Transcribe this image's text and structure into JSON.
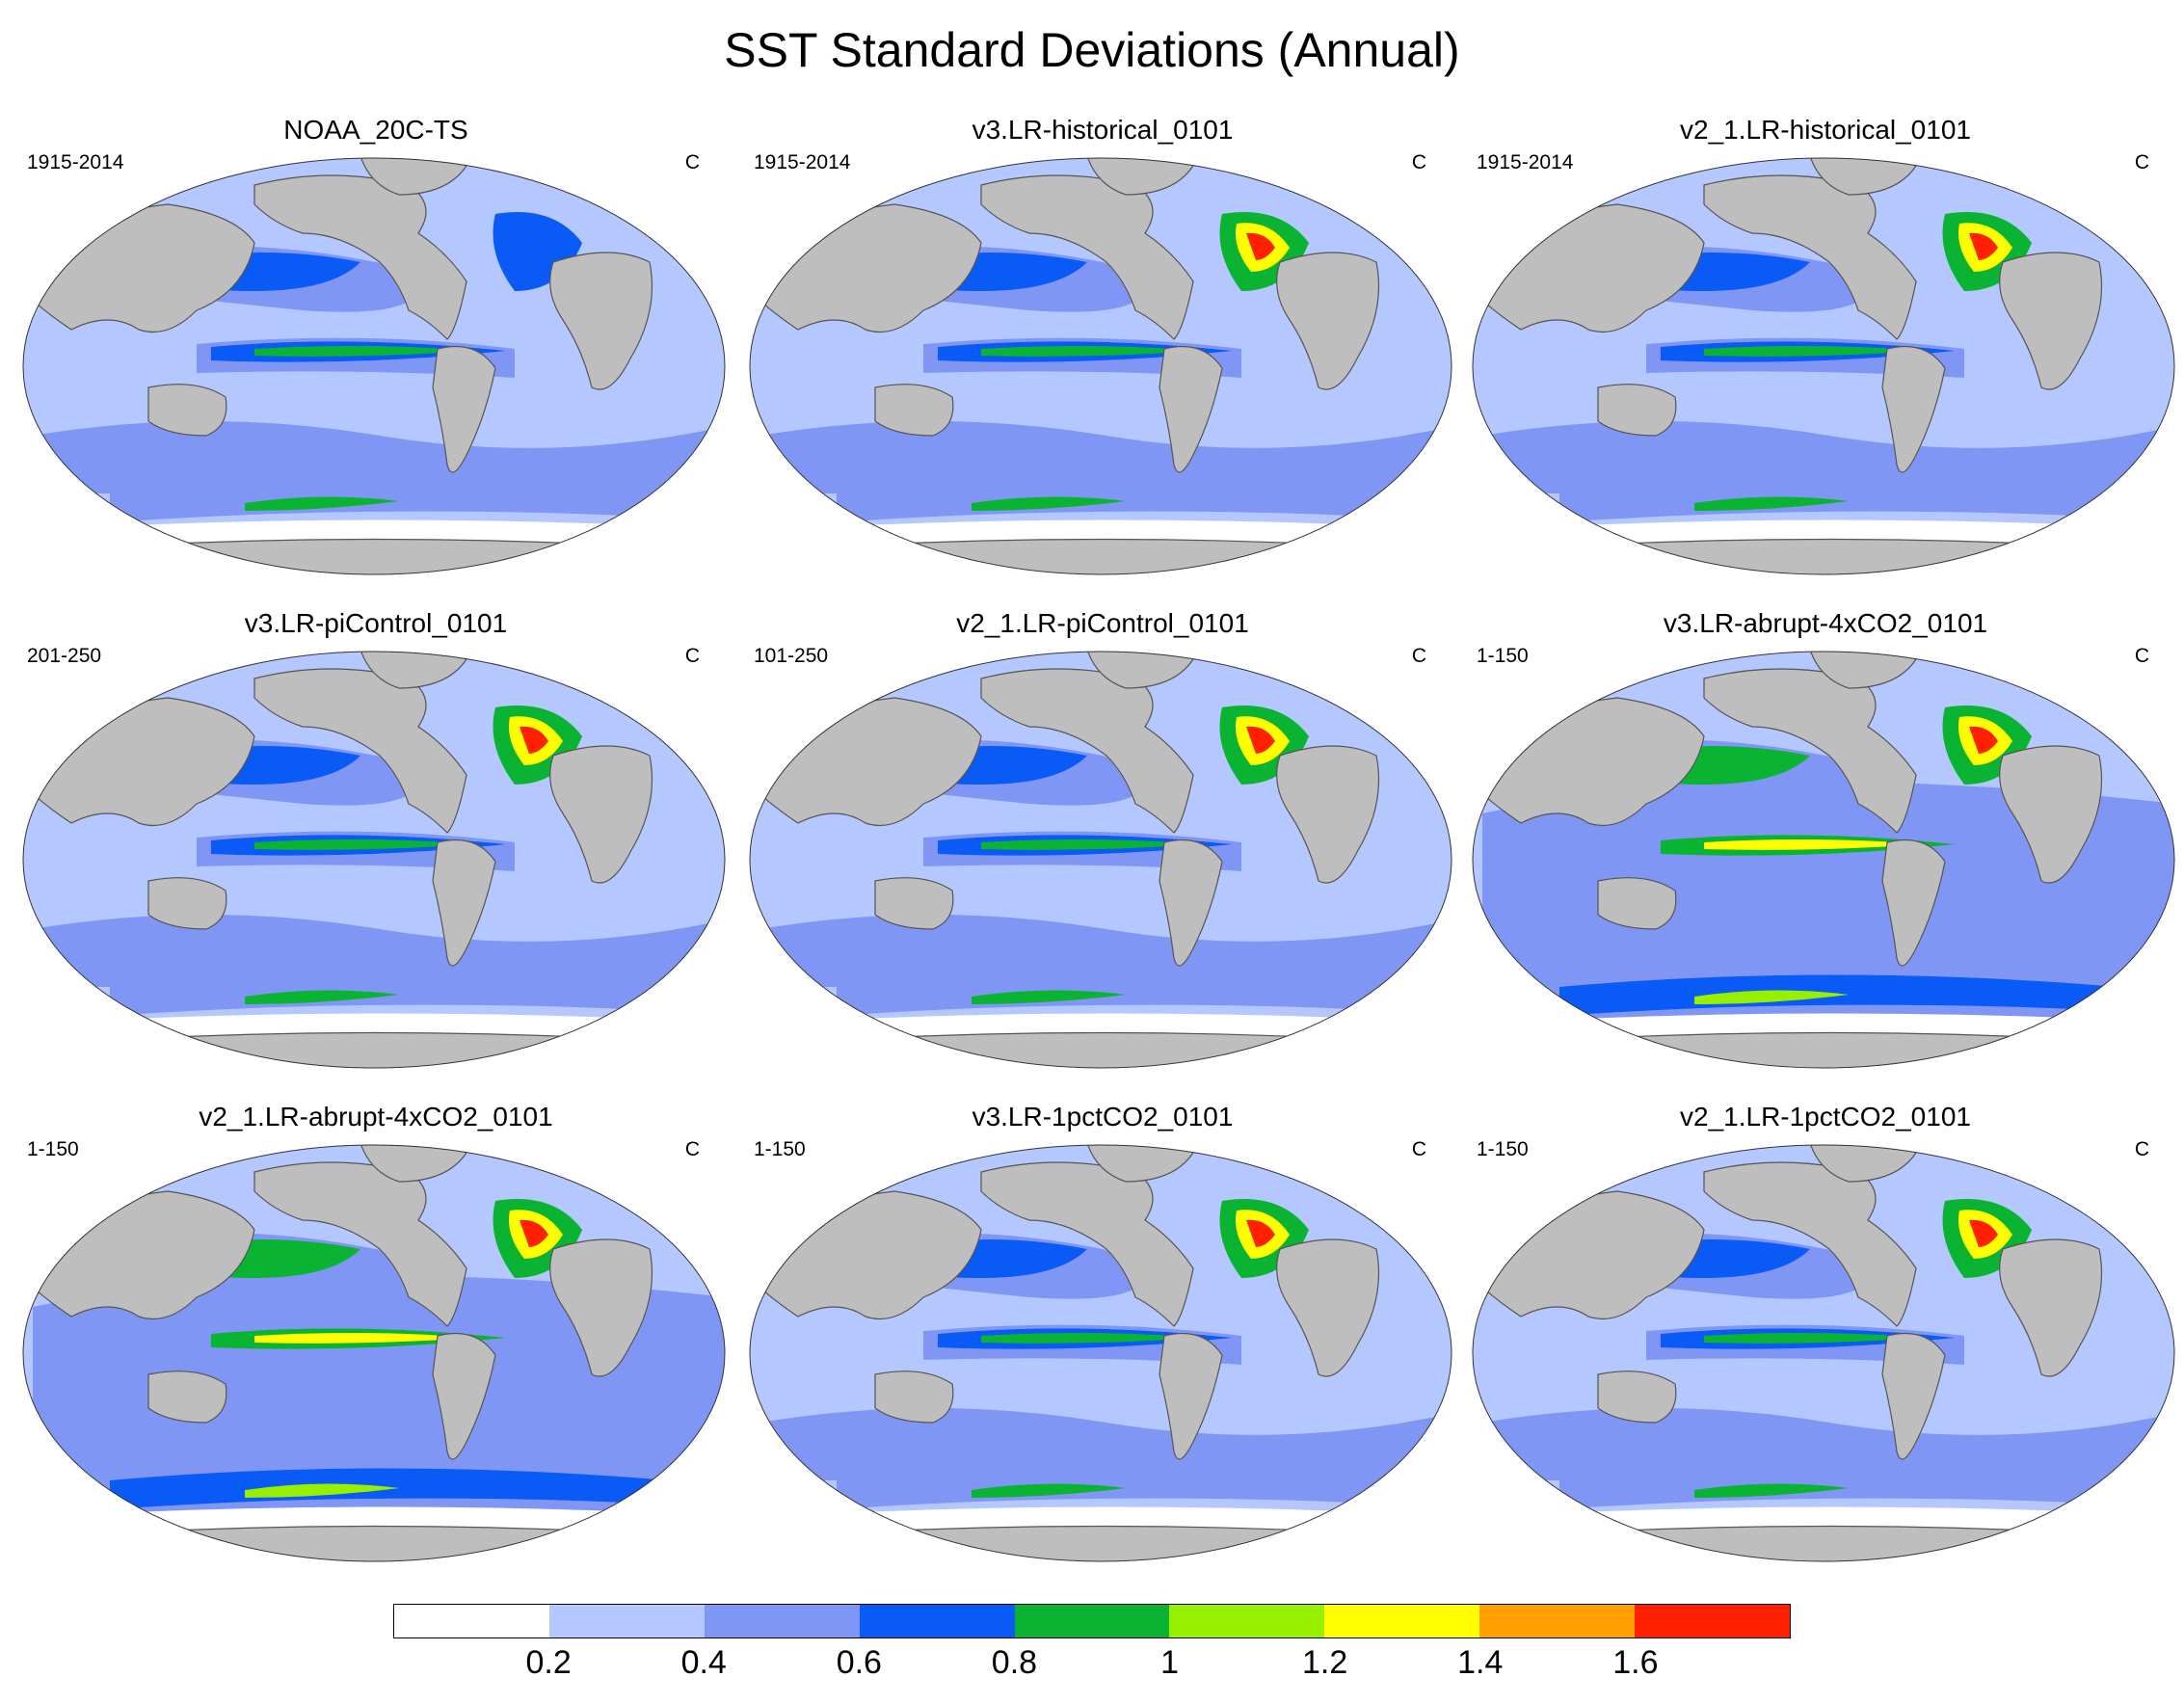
{
  "title": "SST Standard Deviations (Annual)",
  "panels": [
    {
      "title": "NOAA_20C-TS",
      "period": "1915-2014",
      "units": "C"
    },
    {
      "title": "v3.LR-historical_0101",
      "period": "1915-2014",
      "units": "C"
    },
    {
      "title": "v2_1.LR-historical_0101",
      "period": "1915-2014",
      "units": "C"
    },
    {
      "title": "v3.LR-piControl_0101",
      "period": "201-250",
      "units": "C"
    },
    {
      "title": "v2_1.LR-piControl_0101",
      "period": "101-250",
      "units": "C"
    },
    {
      "title": "v3.LR-abrupt-4xCO2_0101",
      "period": "1-150",
      "units": "C"
    },
    {
      "title": "v2_1.LR-abrupt-4xCO2_0101",
      "period": "1-150",
      "units": "C"
    },
    {
      "title": "v3.LR-1pctCO2_0101",
      "period": "1-150",
      "units": "C"
    },
    {
      "title": "v2_1.LR-1pctCO2_0101",
      "period": "1-150",
      "units": "C"
    }
  ],
  "colorbar": {
    "labels": [
      "0.2",
      "0.4",
      "0.6",
      "0.8",
      "1",
      "1.2",
      "1.4",
      "1.6"
    ],
    "colors": [
      "#ffffff",
      "#b4c8ff",
      "#8096f5",
      "#0a5af5",
      "#0ab432",
      "#96f000",
      "#ffff00",
      "#ffa000",
      "#ff2000"
    ]
  },
  "map_colors": {
    "land": "#bebebe",
    "coast": "#555555"
  }
}
